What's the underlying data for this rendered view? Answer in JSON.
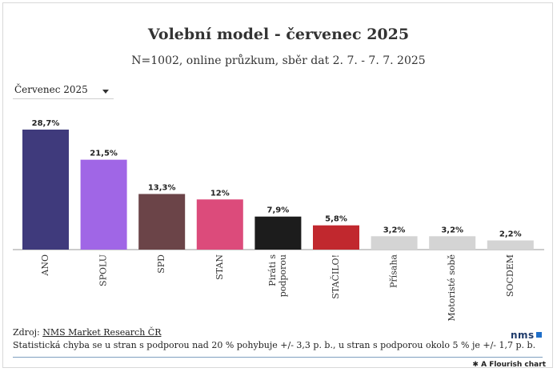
{
  "header": {
    "title": "Volební model - červenec 2025",
    "subtitle": "N=1002, online průzkum, sběr dat 2. 7. - 7. 7. 2025"
  },
  "filter": {
    "selected": "Červenec 2025",
    "icon": "chevron-down-icon"
  },
  "chart_data": {
    "type": "bar",
    "title": "Volební model - červenec 2025",
    "subtitle": "N=1002, online průzkum, sběr dat 2. 7. - 7. 7. 2025",
    "xlabel": "",
    "ylabel": "",
    "grid": false,
    "categories": [
      "ANO",
      "SPOLU",
      "SPD",
      "STAN",
      "Piráti s podporou",
      "STAČILO!",
      "Přísaha",
      "Motoristé sobě",
      "SOCDEM"
    ],
    "values": [
      28.7,
      21.5,
      13.3,
      12,
      7.9,
      5.8,
      3.2,
      3.2,
      2.2
    ],
    "value_labels": [
      "28,7%",
      "21,5%",
      "13,3%",
      "12%",
      "7,9%",
      "5,8%",
      "3,2%",
      "3,2%",
      "2,2%"
    ],
    "colors": [
      "#3f3a7c",
      "#a066e6",
      "#6b4448",
      "#dc4b7b",
      "#1c1c1c",
      "#c1282e",
      "#d4d4d4",
      "#d4d4d4",
      "#d4d4d4"
    ],
    "ylim": [
      0,
      28.7
    ]
  },
  "footer": {
    "source_prefix": "Zdroj: ",
    "source_link": "NMS Market Research ČR",
    "note": "Statistická chyba se u stran s podporou nad 20 % pohybuje +/- 3,3 p. b., u stran s podporou okolo 5 % je +/- 1,7 p. b.",
    "brand": "nms",
    "flourish": "A Flourish chart"
  }
}
